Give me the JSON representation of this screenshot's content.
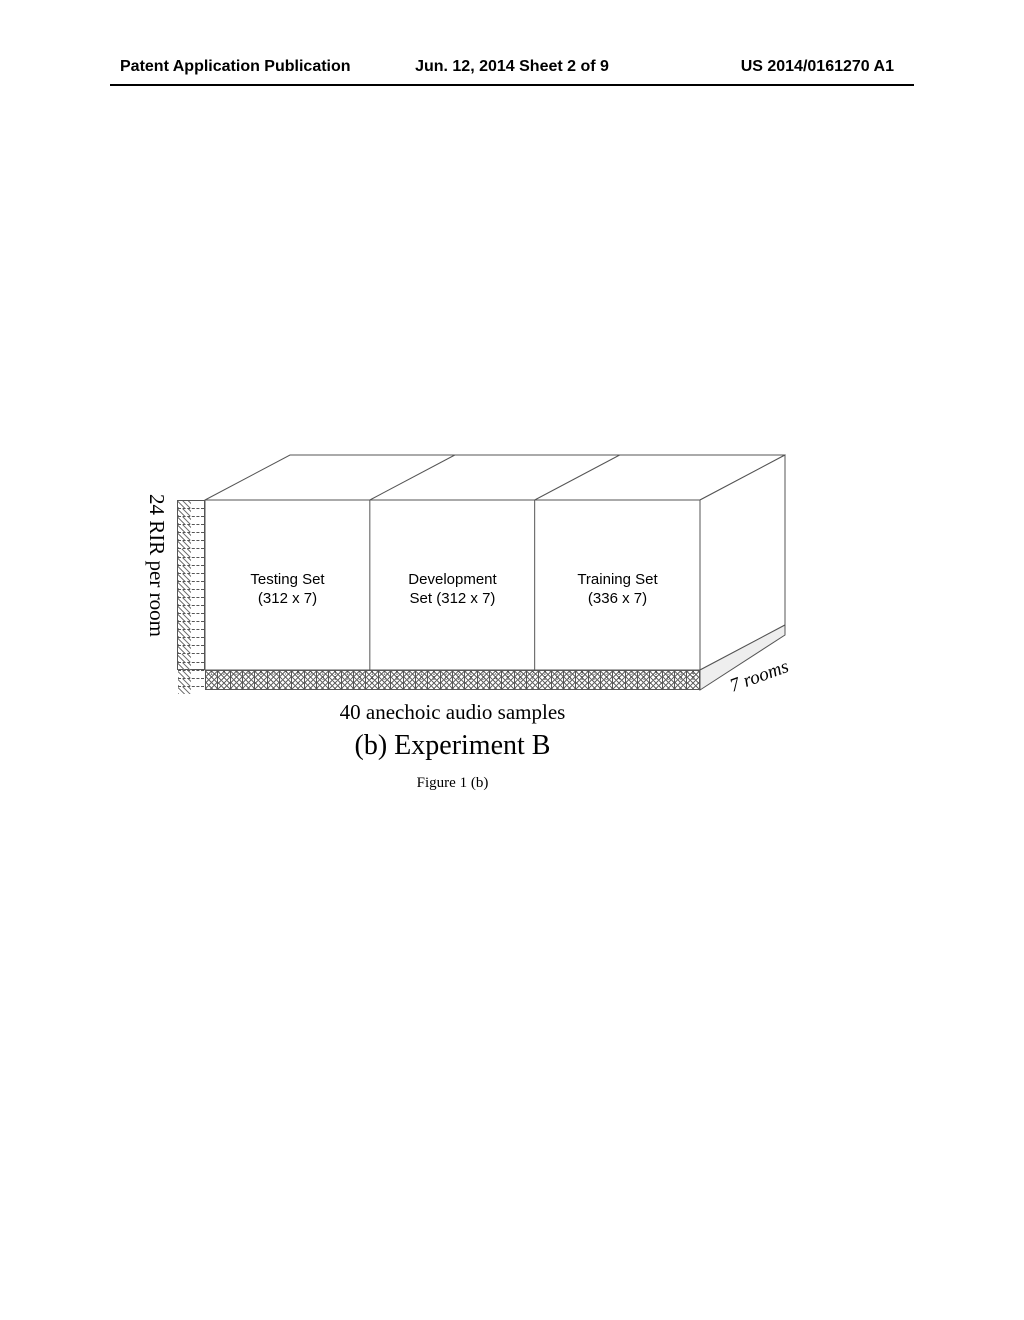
{
  "header": {
    "left": "Patent Application Publication",
    "center": "Jun. 12, 2014  Sheet 2 of 9",
    "right": "US 2014/0161270 A1"
  },
  "diagram": {
    "yaxis_label": "24 RIR per room",
    "xaxis_label": "40 anechoic audio samples",
    "depth_label": "7 rooms",
    "subcaption": "(b) Experiment B",
    "caption": "Figure 1 (b)",
    "front_sections": [
      {
        "line1": "Testing Set",
        "line2": "(312 x 7)"
      },
      {
        "line1": "Development",
        "line2": "Set (312 x 7)"
      },
      {
        "line1": "Training Set",
        "line2": "(336 x 7)"
      }
    ],
    "y_ticks": 24,
    "x_samples": 40,
    "geom": {
      "front_x": 65,
      "front_y": 40,
      "front_w": 495,
      "front_h": 170,
      "depth_dx": 85,
      "depth_dy": -45,
      "section_splits": [
        0.333,
        0.666
      ]
    },
    "colors": {
      "stroke": "#555555",
      "fill": "#ffffff",
      "text": "#000000"
    },
    "fonts": {
      "box_label": 15,
      "axis_label": 21,
      "depth_label": 19,
      "subcaption": 28,
      "caption": 15
    }
  }
}
